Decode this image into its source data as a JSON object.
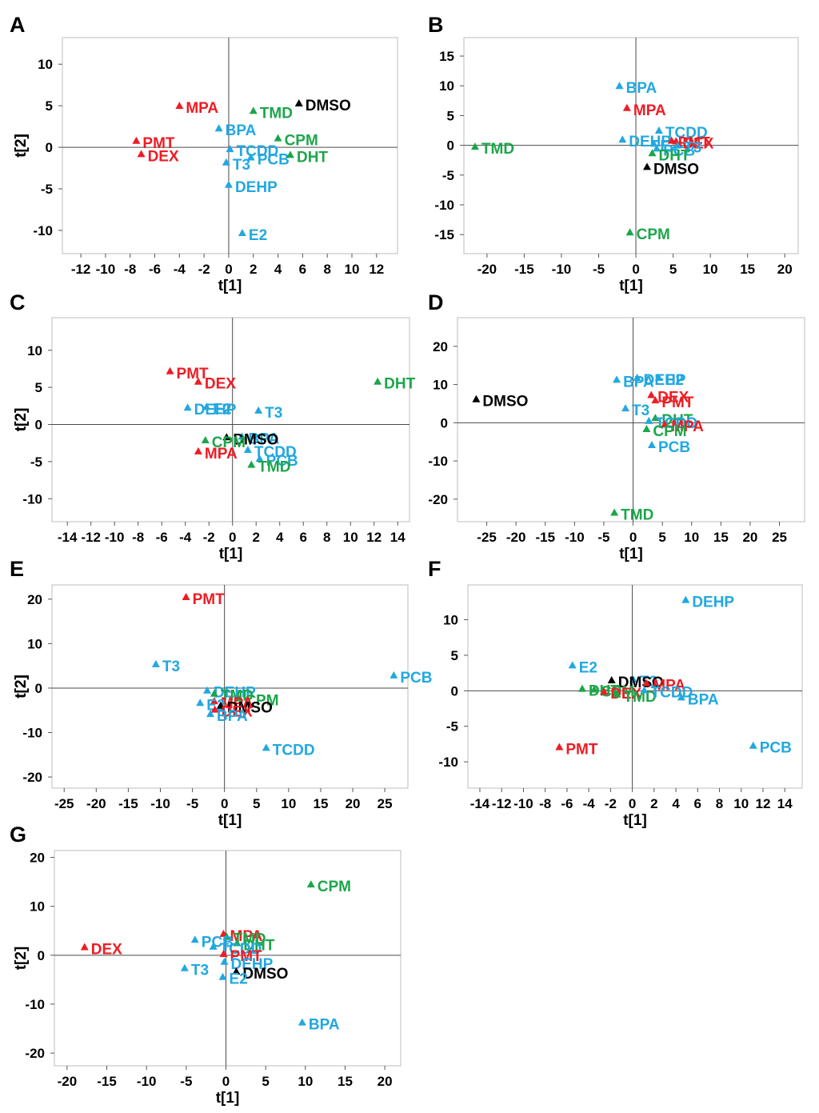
{
  "colors": {
    "red": "#ee1c24",
    "green": "#1ca64a",
    "blue": "#21a8e0",
    "black": "#000000",
    "frame": "#c8c8c8",
    "axis": "#4a4a4a"
  },
  "chart_data": [
    {
      "type": "scatter",
      "panel": "A",
      "xlabel": "t[1]",
      "ylabel": "t[2]",
      "xlim": [
        -13.5,
        13.7
      ],
      "ylim": [
        -12.8,
        13.2
      ],
      "xticks": [
        -12,
        -10,
        -8,
        -6,
        -4,
        -2,
        0,
        2,
        4,
        6,
        8,
        10,
        12
      ],
      "xtick_labels": [
        "-12",
        "-10",
        "-8",
        "-6",
        "-4",
        "-2",
        "0",
        "2",
        "4",
        "6",
        "8",
        "10",
        "12"
      ],
      "yticks": [
        10,
        5,
        0,
        -5,
        -10
      ],
      "ytick_labels": [
        "10",
        "5",
        "0",
        "-5",
        "-10"
      ],
      "points": [
        {
          "label": "MPA",
          "x": -4,
          "y": 5,
          "color": "red"
        },
        {
          "label": "PMT",
          "x": -7.5,
          "y": 0.8,
          "color": "red"
        },
        {
          "label": "DEX",
          "x": -7.1,
          "y": -0.8,
          "color": "red"
        },
        {
          "label": "BPA",
          "x": -0.8,
          "y": 2.3,
          "color": "blue"
        },
        {
          "label": "TCDD",
          "x": 0.1,
          "y": -0.2,
          "color": "blue"
        },
        {
          "label": "T3",
          "x": -0.2,
          "y": -1.8,
          "color": "blue"
        },
        {
          "label": "PCB",
          "x": 1.8,
          "y": -1.2,
          "color": "blue"
        },
        {
          "label": "DEHP",
          "x": 0,
          "y": -4.5,
          "color": "blue"
        },
        {
          "label": "E2",
          "x": 1.1,
          "y": -10.3,
          "color": "blue"
        },
        {
          "label": "TMD",
          "x": 2,
          "y": 4.4,
          "color": "green"
        },
        {
          "label": "CPM",
          "x": 4,
          "y": 1.1,
          "color": "green"
        },
        {
          "label": "DHT",
          "x": 5,
          "y": -0.9,
          "color": "green"
        },
        {
          "label": "DMSO",
          "x": 5.7,
          "y": 5.3,
          "color": "black"
        }
      ]
    },
    {
      "type": "scatter",
      "panel": "B",
      "xlabel": "t[1]",
      "ylabel": "t[2]",
      "xlim": [
        -23.1,
        21.8
      ],
      "ylim": [
        -18.2,
        18.1
      ],
      "xticks": [
        -20,
        -15,
        -10,
        -5,
        0,
        5,
        10,
        15,
        20
      ],
      "xtick_labels": [
        "-20",
        "-15",
        "-10",
        "-5",
        "0",
        "5",
        "10",
        "15",
        "20"
      ],
      "yticks": [
        15,
        10,
        5,
        0,
        -5,
        -10,
        -15
      ],
      "ytick_labels": [
        "15",
        "10",
        "5",
        "0",
        "-5",
        "-10",
        "-15"
      ],
      "points": [
        {
          "label": "BPA",
          "x": -2.2,
          "y": 10,
          "color": "blue"
        },
        {
          "label": "MPA",
          "x": -1.2,
          "y": 6.3,
          "color": "red"
        },
        {
          "label": "DEHP",
          "x": -1.8,
          "y": 1,
          "color": "blue"
        },
        {
          "label": "TCDD",
          "x": 3.1,
          "y": 2.5,
          "color": "blue"
        },
        {
          "label": "PCB",
          "x": 2.8,
          "y": -0.5,
          "color": "blue"
        },
        {
          "label": "E2",
          "x": 2.4,
          "y": 0.3,
          "color": "blue"
        },
        {
          "label": "PMT",
          "x": 4.8,
          "y": 0.8,
          "color": "red"
        },
        {
          "label": "DEX",
          "x": 5.4,
          "y": 0.7,
          "color": "red"
        },
        {
          "label": "T3",
          "x": 5.6,
          "y": 0,
          "color": "blue"
        },
        {
          "label": "DHT",
          "x": 2.2,
          "y": -1.3,
          "color": "green"
        },
        {
          "label": "TMD",
          "x": -21.6,
          "y": -0.2,
          "color": "green"
        },
        {
          "label": "DMSO",
          "x": 1.5,
          "y": -3.6,
          "color": "black"
        },
        {
          "label": "CPM",
          "x": -0.8,
          "y": -14.6,
          "color": "green"
        }
      ]
    },
    {
      "type": "scatter",
      "panel": "C",
      "xlabel": "t[1]",
      "ylabel": "t[2]",
      "xlim": [
        -15.3,
        15
      ],
      "ylim": [
        -13.1,
        14.4
      ],
      "xticks": [
        -14,
        -12,
        -10,
        -8,
        -6,
        -4,
        -2,
        0,
        2,
        4,
        6,
        8,
        10,
        12,
        14
      ],
      "xtick_labels": [
        "-14",
        "-12",
        "-10",
        "-8",
        "-6",
        "-4",
        "-2",
        "0",
        "2",
        "4",
        "6",
        "8",
        "10",
        "12",
        "14"
      ],
      "yticks": [
        10,
        5,
        0,
        -5,
        -10
      ],
      "ytick_labels": [
        "10",
        "5",
        "0",
        "-5",
        "-10"
      ],
      "points": [
        {
          "label": "PMT",
          "x": -5.3,
          "y": 7.2,
          "color": "red"
        },
        {
          "label": "DEX",
          "x": -2.9,
          "y": 5.8,
          "color": "red"
        },
        {
          "label": "DEHP",
          "x": -3.8,
          "y": 2.3,
          "color": "blue"
        },
        {
          "label": "E2",
          "x": -2.2,
          "y": 2.4,
          "color": "blue"
        },
        {
          "label": "T3",
          "x": 2.2,
          "y": 1.9,
          "color": "blue"
        },
        {
          "label": "DHT",
          "x": 12.3,
          "y": 5.8,
          "color": "green"
        },
        {
          "label": "BPA",
          "x": 0.8,
          "y": -1.6,
          "color": "blue"
        },
        {
          "label": "DMSO",
          "x": -0.5,
          "y": -1.7,
          "color": "black"
        },
        {
          "label": "CPM",
          "x": -2.3,
          "y": -2.1,
          "color": "green"
        },
        {
          "label": "TCDD",
          "x": 1.3,
          "y": -3.4,
          "color": "blue"
        },
        {
          "label": "MPA",
          "x": -2.9,
          "y": -3.6,
          "color": "red"
        },
        {
          "label": "PCB",
          "x": 2.3,
          "y": -4.6,
          "color": "blue"
        },
        {
          "label": "TMD",
          "x": 1.6,
          "y": -5.4,
          "color": "green"
        }
      ]
    },
    {
      "type": "scatter",
      "panel": "D",
      "xlabel": "t[1]",
      "ylabel": "t[2]",
      "xlim": [
        -30,
        29.3
      ],
      "ylim": [
        -25.9,
        27.5
      ],
      "xticks": [
        -25,
        -20,
        -15,
        -10,
        -5,
        0,
        5,
        10,
        15,
        20,
        25
      ],
      "xtick_labels": [
        "-25",
        "-20",
        "-15",
        "-10",
        "-5",
        "0",
        "5",
        "10",
        "15",
        "20",
        "25"
      ],
      "yticks": [
        20,
        10,
        0,
        -10,
        -20
      ],
      "ytick_labels": [
        "20",
        "10",
        "0",
        "-10",
        "-20"
      ],
      "points": [
        {
          "label": "DEHP",
          "x": 0.7,
          "y": 11.8,
          "color": "blue"
        },
        {
          "label": "E2",
          "x": 4.4,
          "y": 11.8,
          "color": "blue"
        },
        {
          "label": "BPA",
          "x": -2.8,
          "y": 11.3,
          "color": "blue"
        },
        {
          "label": "DEX",
          "x": 3.1,
          "y": 7.3,
          "color": "red"
        },
        {
          "label": "PMT",
          "x": 3.8,
          "y": 5.9,
          "color": "red"
        },
        {
          "label": "DMSO",
          "x": -26.8,
          "y": 6.2,
          "color": "black"
        },
        {
          "label": "T3",
          "x": -1.3,
          "y": 3.8,
          "color": "blue"
        },
        {
          "label": "DHT",
          "x": 3.8,
          "y": 1.3,
          "color": "green"
        },
        {
          "label": "TCDD",
          "x": 2.7,
          "y": 0.5,
          "color": "blue"
        },
        {
          "label": "MPA",
          "x": 5.4,
          "y": -0.4,
          "color": "red"
        },
        {
          "label": "CPM",
          "x": 2.3,
          "y": -1.6,
          "color": "green"
        },
        {
          "label": "PCB",
          "x": 3.2,
          "y": -5.8,
          "color": "blue"
        },
        {
          "label": "TMD",
          "x": -3.2,
          "y": -23.5,
          "color": "green"
        }
      ]
    },
    {
      "type": "scatter",
      "panel": "E",
      "xlabel": "t[1]",
      "ylabel": "t[2]",
      "xlim": [
        -26.9,
        28.6
      ],
      "ylim": [
        -22.5,
        23.2
      ],
      "xticks": [
        -25,
        -20,
        -15,
        -10,
        -5,
        0,
        5,
        10,
        15,
        20,
        25
      ],
      "xtick_labels": [
        "-25",
        "-20",
        "-15",
        "-10",
        "-5",
        "0",
        "5",
        "10",
        "15",
        "20",
        "25"
      ],
      "yticks": [
        20,
        10,
        0,
        -10,
        -20
      ],
      "ytick_labels": [
        "20",
        "10",
        "0",
        "-10",
        "-20"
      ],
      "points": [
        {
          "label": "PMT",
          "x": -6,
          "y": 20.5,
          "color": "red"
        },
        {
          "label": "T3",
          "x": -10.7,
          "y": 5.4,
          "color": "blue"
        },
        {
          "label": "PCB",
          "x": 26.4,
          "y": 2.9,
          "color": "blue"
        },
        {
          "label": "DEHP",
          "x": -2.7,
          "y": -0.5,
          "color": "blue"
        },
        {
          "label": "TMD",
          "x": -1.6,
          "y": -1.2,
          "color": "green"
        },
        {
          "label": "CPM",
          "x": 2.2,
          "y": -2.3,
          "color": "green"
        },
        {
          "label": "MPA",
          "x": -1.6,
          "y": -2.9,
          "color": "red"
        },
        {
          "label": "E2",
          "x": -3.8,
          "y": -3.3,
          "color": "blue"
        },
        {
          "label": "DMSO",
          "x": -0.6,
          "y": -3.9,
          "color": "black"
        },
        {
          "label": "DEX",
          "x": -1.5,
          "y": -4.8,
          "color": "red"
        },
        {
          "label": "BPA",
          "x": -2.2,
          "y": -5.8,
          "color": "blue"
        },
        {
          "label": "TCDD",
          "x": 6.5,
          "y": -13.4,
          "color": "blue"
        }
      ]
    },
    {
      "type": "scatter",
      "panel": "F",
      "xlabel": "t[1]",
      "ylabel": "t[2]",
      "xlim": [
        -15.1,
        15.6
      ],
      "ylim": [
        -13.7,
        14.9
      ],
      "xticks": [
        -14,
        -12,
        -10,
        -8,
        -6,
        -4,
        -2,
        0,
        2,
        4,
        6,
        8,
        10,
        12,
        14
      ],
      "xtick_labels": [
        "-14",
        "-12",
        "-10",
        "-8",
        "-6",
        "-4",
        "-2",
        "0",
        "2",
        "4",
        "6",
        "8",
        "10",
        "12",
        "14"
      ],
      "yticks": [
        10,
        5,
        0,
        -5,
        -10
      ],
      "ytick_labels": [
        "10",
        "5",
        "0",
        "-5",
        "-10"
      ],
      "points": [
        {
          "label": "DEHP",
          "x": 4.9,
          "y": 12.8,
          "color": "blue"
        },
        {
          "label": "E2",
          "x": -5.5,
          "y": 3.6,
          "color": "blue"
        },
        {
          "label": "T3",
          "x": 0.1,
          "y": 1.6,
          "color": "blue"
        },
        {
          "label": "DMSO",
          "x": -1.9,
          "y": 1.5,
          "color": "black"
        },
        {
          "label": "MPA",
          "x": 1.3,
          "y": 1.1,
          "color": "red"
        },
        {
          "label": "DHT",
          "x": -4.6,
          "y": 0.3,
          "color": "green"
        },
        {
          "label": "CPM",
          "x": -3.5,
          "y": 0.2,
          "color": "green"
        },
        {
          "label": "DEX",
          "x": -2.6,
          "y": -0.1,
          "color": "red"
        },
        {
          "label": "TMD",
          "x": -1.4,
          "y": -0.5,
          "color": "green"
        },
        {
          "label": "TCDD",
          "x": 1.1,
          "y": 0.1,
          "color": "blue"
        },
        {
          "label": "BPA",
          "x": 4.5,
          "y": -0.9,
          "color": "blue"
        },
        {
          "label": "PMT",
          "x": -6.7,
          "y": -7.9,
          "color": "red"
        },
        {
          "label": "PCB",
          "x": 11.1,
          "y": -7.7,
          "color": "blue"
        }
      ]
    },
    {
      "type": "scatter",
      "panel": "G",
      "xlabel": "t[1]",
      "ylabel": "t[2]",
      "xlim": [
        -21.6,
        22
      ],
      "ylim": [
        -22.6,
        21.4
      ],
      "xticks": [
        -20,
        -15,
        -10,
        -5,
        0,
        5,
        10,
        15,
        20
      ],
      "xtick_labels": [
        "-20",
        "-15",
        "-10",
        "-5",
        "0",
        "5",
        "10",
        "15",
        "20"
      ],
      "yticks": [
        20,
        10,
        0,
        -10,
        -20
      ],
      "ytick_labels": [
        "20",
        "10",
        "0",
        "-10",
        "-20"
      ],
      "points": [
        {
          "label": "CPM",
          "x": 10.7,
          "y": 14.5,
          "color": "green"
        },
        {
          "label": "DEX",
          "x": -17.8,
          "y": 1.7,
          "color": "red"
        },
        {
          "label": "MPA",
          "x": -0.3,
          "y": 4.4,
          "color": "red"
        },
        {
          "label": "TMD",
          "x": 0.1,
          "y": 3.8,
          "color": "green"
        },
        {
          "label": "PCB",
          "x": -3.9,
          "y": 3.2,
          "color": "blue"
        },
        {
          "label": "DHT",
          "x": 1.4,
          "y": 2.5,
          "color": "green"
        },
        {
          "label": "TCDD",
          "x": -1.6,
          "y": 1.8,
          "color": "blue"
        },
        {
          "label": "PMT",
          "x": -0.3,
          "y": 0.3,
          "color": "red"
        },
        {
          "label": "DEHP",
          "x": -0.2,
          "y": -1.3,
          "color": "blue"
        },
        {
          "label": "T3",
          "x": -5.2,
          "y": -2.6,
          "color": "blue"
        },
        {
          "label": "DMSO",
          "x": 1.3,
          "y": -3.3,
          "color": "black"
        },
        {
          "label": "E2",
          "x": -0.4,
          "y": -4.4,
          "color": "blue"
        },
        {
          "label": "BPA",
          "x": 9.6,
          "y": -13.7,
          "color": "blue"
        }
      ]
    }
  ]
}
